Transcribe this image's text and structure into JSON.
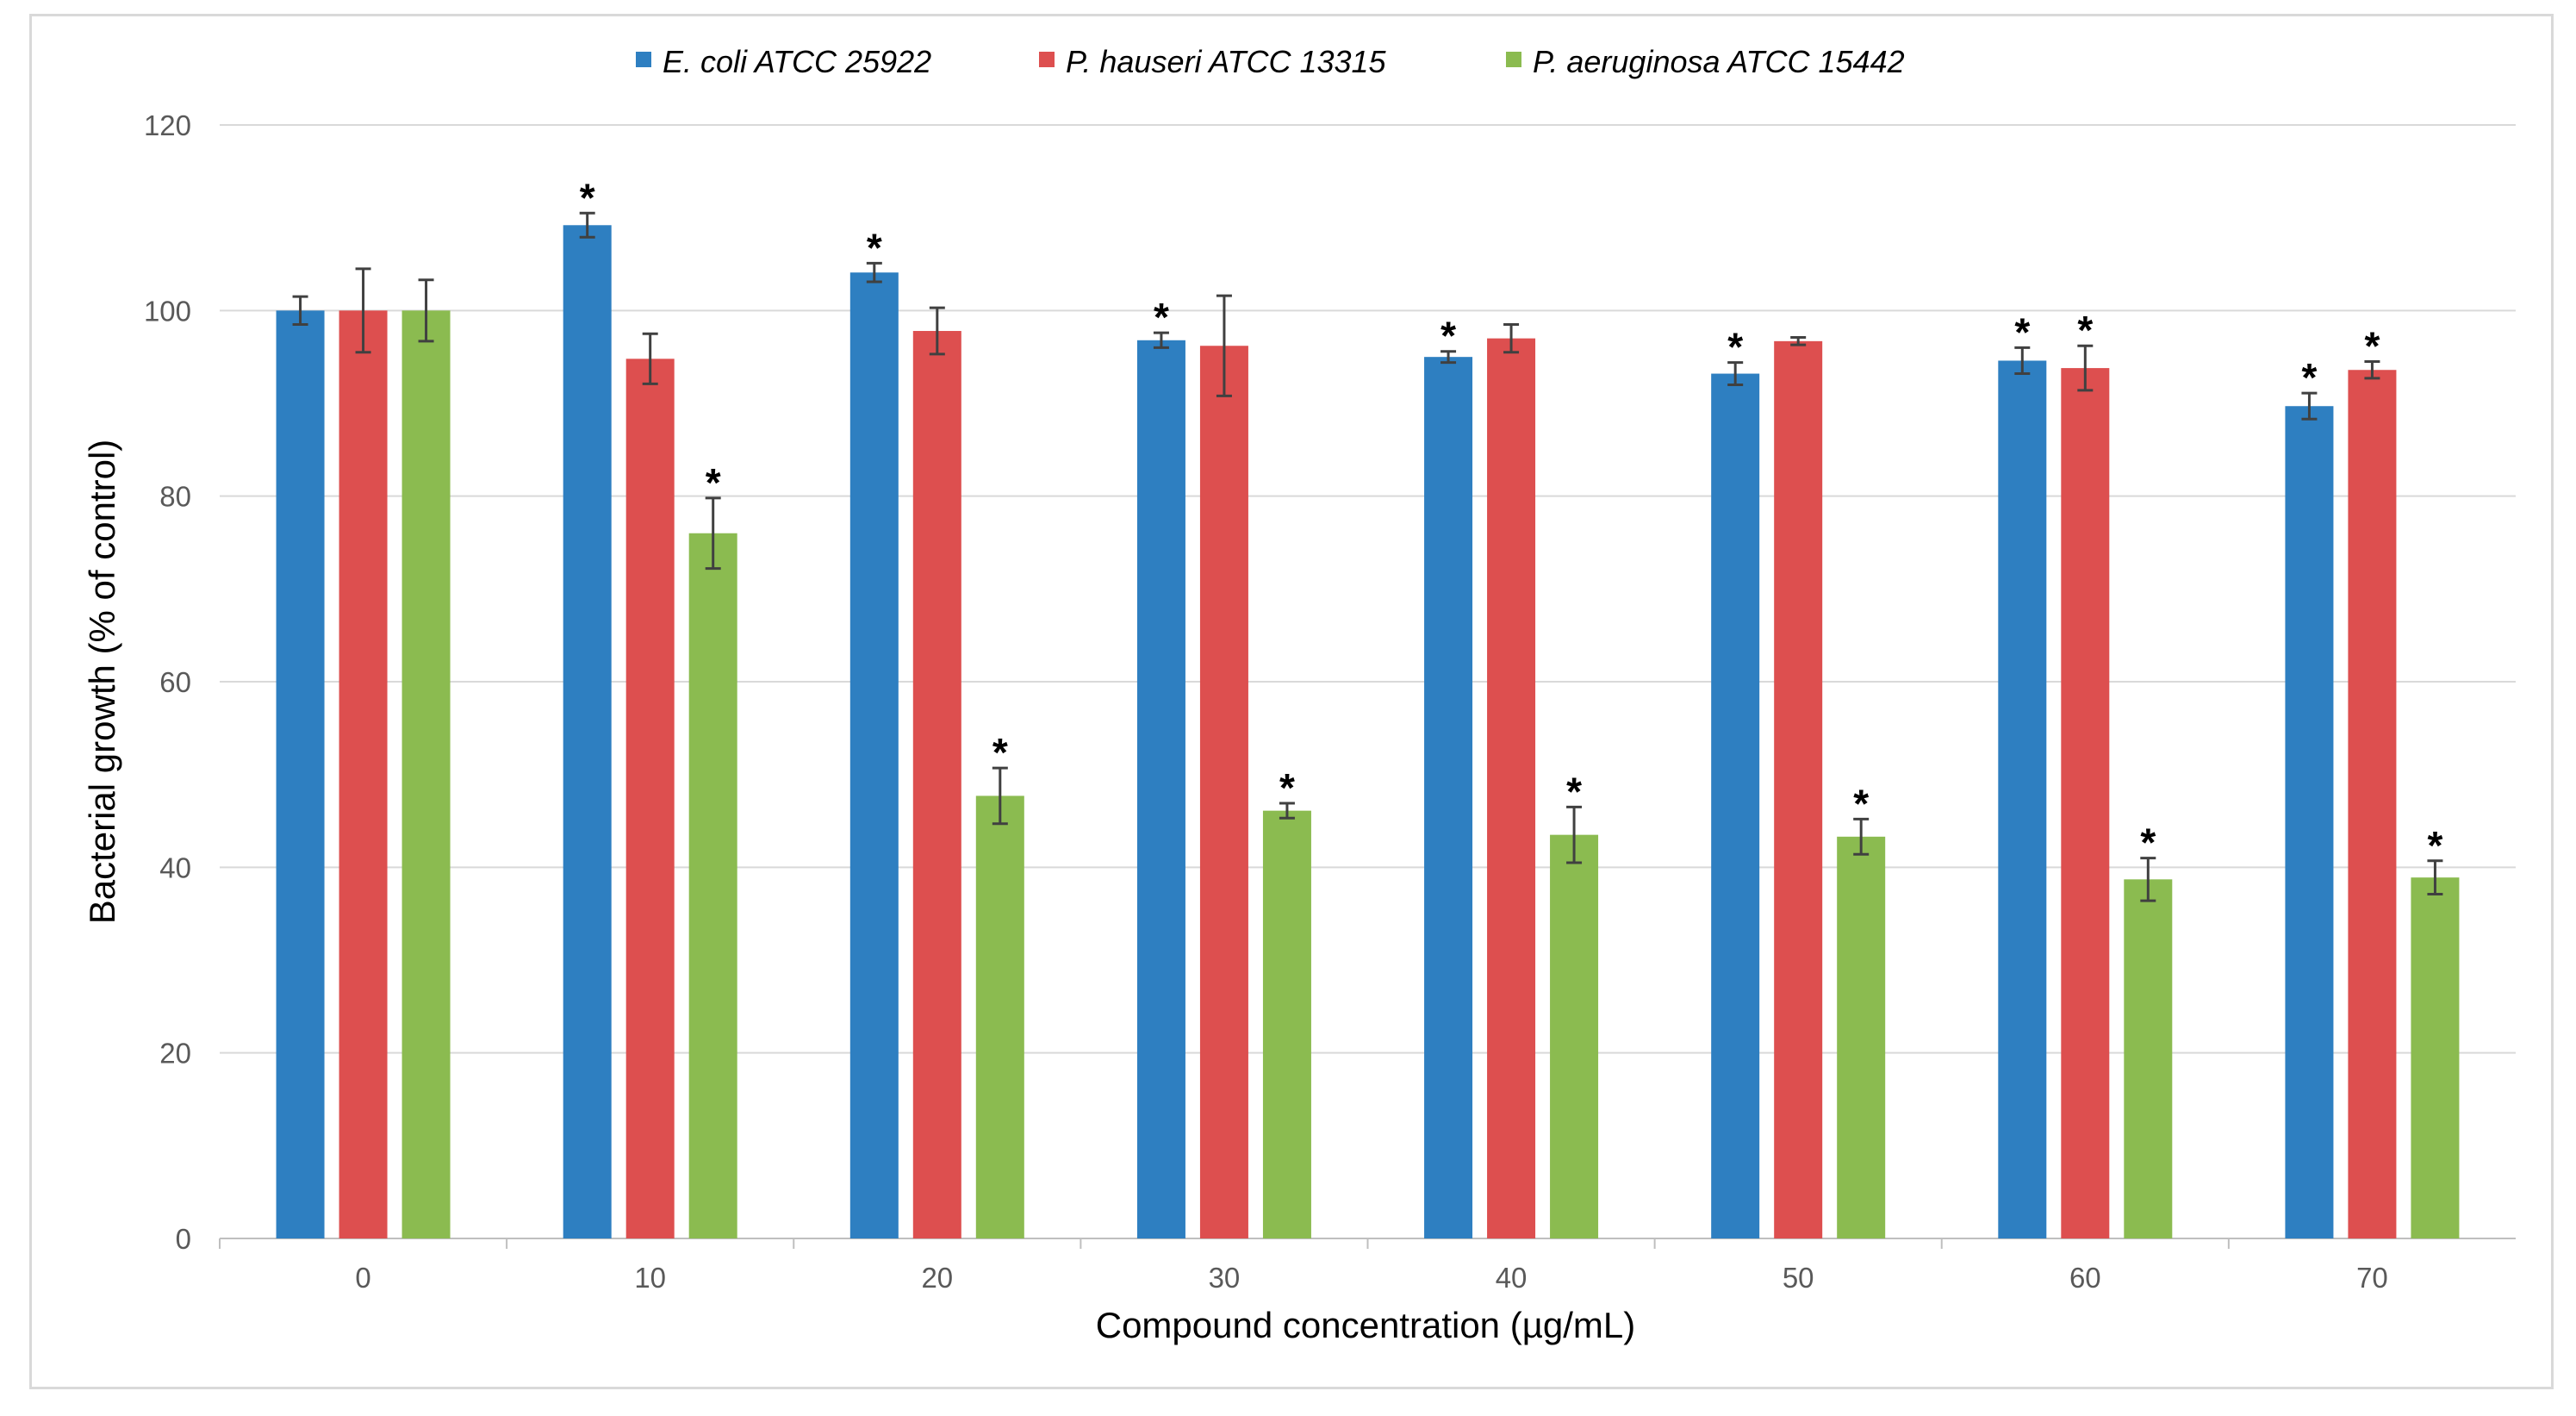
{
  "chart_data": {
    "type": "bar",
    "title": "",
    "xlabel": "Compound concentration (µg/mL)",
    "ylabel": "Bacterial growth (%  of control)",
    "ylim": [
      0,
      120
    ],
    "yticks": [
      0,
      20,
      40,
      60,
      80,
      100,
      120
    ],
    "grid": true,
    "legend_position": "top",
    "categories": [
      "0",
      "10",
      "20",
      "30",
      "40",
      "50",
      "60",
      "70"
    ],
    "series": [
      {
        "name": "E. coli ATCC 25922",
        "color": "#2e7fc1",
        "values": [
          100,
          109.2,
          104.1,
          96.8,
          95.0,
          93.2,
          94.6,
          89.7
        ],
        "errors": [
          1.5,
          1.3,
          1.0,
          0.8,
          0.6,
          1.2,
          1.4,
          1.4
        ],
        "significant": [
          false,
          true,
          true,
          true,
          true,
          true,
          true,
          true
        ]
      },
      {
        "name": "P. hauseri ATCC 13315",
        "color": "#dd4f4f",
        "values": [
          100,
          94.8,
          97.8,
          96.2,
          97.0,
          96.7,
          93.8,
          93.6
        ],
        "errors": [
          4.5,
          2.7,
          2.5,
          5.4,
          1.5,
          0.4,
          2.4,
          0.9
        ],
        "significant": [
          false,
          false,
          false,
          false,
          false,
          false,
          true,
          true
        ]
      },
      {
        "name": "P. aeruginosa ATCC 15442",
        "color": "#8bbb50",
        "values": [
          100,
          76.0,
          47.7,
          46.1,
          43.5,
          43.3,
          38.7,
          38.9
        ],
        "errors": [
          3.3,
          3.8,
          3.0,
          0.8,
          3.0,
          1.9,
          2.3,
          1.8
        ],
        "significant": [
          false,
          true,
          true,
          true,
          true,
          true,
          true,
          true
        ]
      }
    ],
    "significance_marker": "*"
  }
}
